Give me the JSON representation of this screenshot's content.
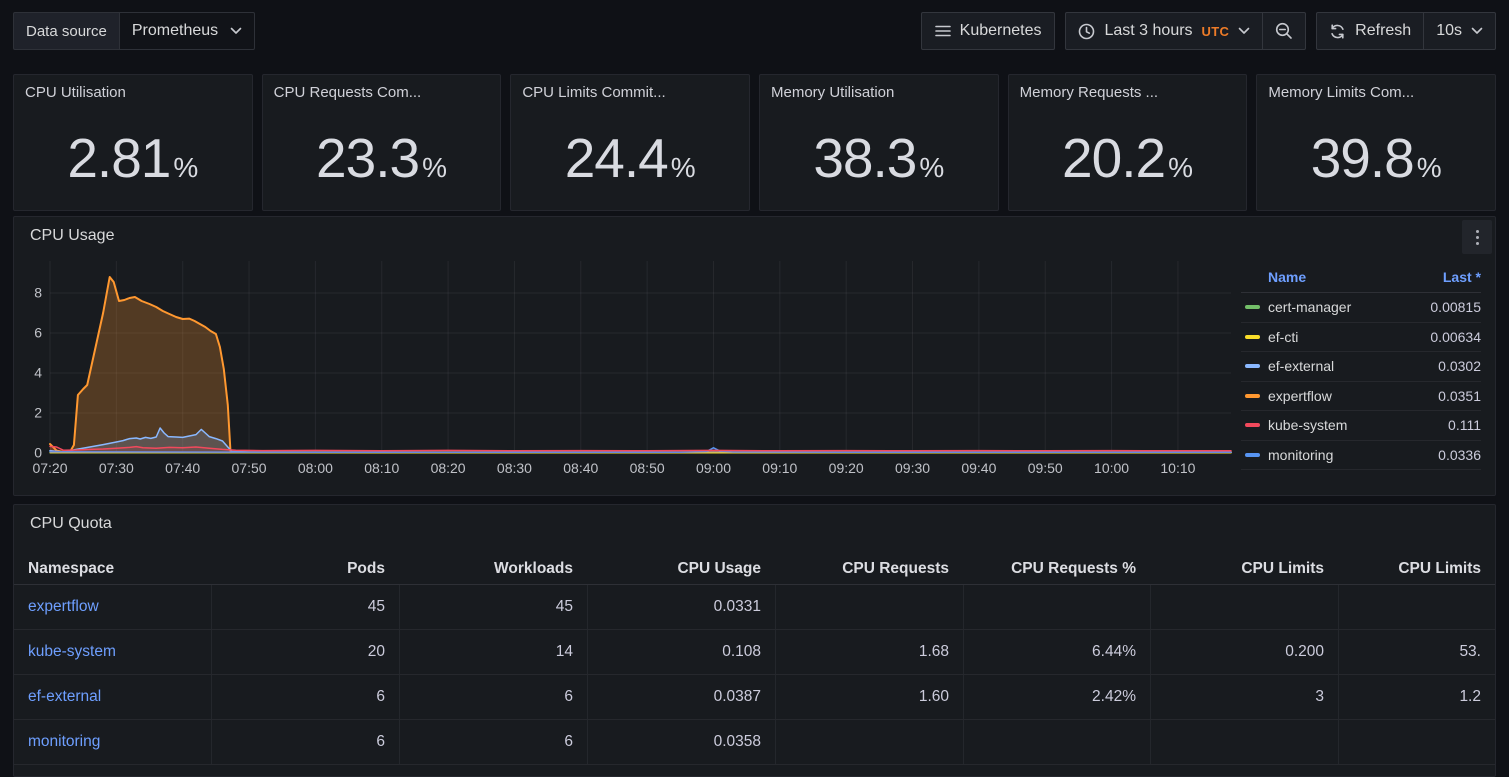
{
  "header": {
    "variable": {
      "label": "Data source",
      "value": "Prometheus"
    },
    "dashboard_button": "Kubernetes",
    "time_range": "Last 3 hours",
    "timezone": "UTC",
    "refresh_label": "Refresh",
    "refresh_interval": "10s"
  },
  "stats": [
    {
      "title": "CPU Utilisation",
      "value": "2.81",
      "unit": "%"
    },
    {
      "title": "CPU Requests Com...",
      "value": "23.3",
      "unit": "%"
    },
    {
      "title": "CPU Limits Commit...",
      "value": "24.4",
      "unit": "%"
    },
    {
      "title": "Memory Utilisation",
      "value": "38.3",
      "unit": "%"
    },
    {
      "title": "Memory Requests ...",
      "value": "20.2",
      "unit": "%"
    },
    {
      "title": "Memory Limits Com...",
      "value": "39.8",
      "unit": "%"
    }
  ],
  "cpu_usage_panel": {
    "title": "CPU Usage",
    "legend": {
      "name_header": "Name",
      "last_header": "Last *",
      "series": [
        {
          "name": "cert-manager",
          "last": "0.00815",
          "color": "#73BF69"
        },
        {
          "name": "ef-cti",
          "last": "0.00634",
          "color": "#FADE2A"
        },
        {
          "name": "ef-external",
          "last": "0.0302",
          "color": "#8AB8FF"
        },
        {
          "name": "expertflow",
          "last": "0.0351",
          "color": "#FF9830"
        },
        {
          "name": "kube-system",
          "last": "0.111",
          "color": "#F2495C"
        },
        {
          "name": "monitoring",
          "last": "0.0336",
          "color": "#5794F2"
        }
      ]
    },
    "chart_data": {
      "type": "area",
      "title": "CPU Usage",
      "x_unit": "minutes after 07:20",
      "xlim": [
        0,
        178
      ],
      "ylim": [
        0,
        9.6
      ],
      "yticks": [
        0,
        2,
        4,
        6,
        8
      ],
      "grid": true,
      "legend_position": "right",
      "xticks": [
        {
          "t": 0,
          "label": "07:20"
        },
        {
          "t": 10,
          "label": "07:30"
        },
        {
          "t": 20,
          "label": "07:40"
        },
        {
          "t": 30,
          "label": "07:50"
        },
        {
          "t": 40,
          "label": "08:00"
        },
        {
          "t": 50,
          "label": "08:10"
        },
        {
          "t": 60,
          "label": "08:20"
        },
        {
          "t": 70,
          "label": "08:30"
        },
        {
          "t": 80,
          "label": "08:40"
        },
        {
          "t": 90,
          "label": "08:50"
        },
        {
          "t": 100,
          "label": "09:00"
        },
        {
          "t": 110,
          "label": "09:10"
        },
        {
          "t": 120,
          "label": "09:20"
        },
        {
          "t": 130,
          "label": "09:30"
        },
        {
          "t": 140,
          "label": "09:40"
        },
        {
          "t": 150,
          "label": "09:50"
        },
        {
          "t": 160,
          "label": "10:00"
        },
        {
          "t": 170,
          "label": "10:10"
        }
      ],
      "series": [
        {
          "name": "expertflow",
          "color": "#FF9830",
          "width": 2,
          "fill_opacity": 0.25,
          "points": [
            [
              0,
              0.45
            ],
            [
              1,
              0.12
            ],
            [
              2,
              0.06
            ],
            [
              3,
              0.05
            ],
            [
              3.6,
              0.4
            ],
            [
              4.2,
              2.9
            ],
            [
              5,
              3.2
            ],
            [
              5.6,
              3.4
            ],
            [
              6.4,
              4.6
            ],
            [
              7.2,
              5.8
            ],
            [
              8,
              7.0
            ],
            [
              9,
              8.8
            ],
            [
              9.6,
              8.55
            ],
            [
              10.4,
              7.6
            ],
            [
              11.2,
              7.65
            ],
            [
              12,
              7.75
            ],
            [
              12.8,
              7.8
            ],
            [
              13.8,
              7.6
            ],
            [
              15,
              7.45
            ],
            [
              16,
              7.3
            ],
            [
              17,
              7.1
            ],
            [
              18,
              6.95
            ],
            [
              19,
              6.8
            ],
            [
              20,
              6.7
            ],
            [
              21,
              6.72
            ],
            [
              21.8,
              6.6
            ],
            [
              22.6,
              6.45
            ],
            [
              23.4,
              6.3
            ],
            [
              24.2,
              6.1
            ],
            [
              25,
              5.95
            ],
            [
              25.6,
              5.3
            ],
            [
              26.2,
              4.2
            ],
            [
              26.8,
              2.4
            ],
            [
              27.2,
              0.06
            ],
            [
              30,
              0.04
            ],
            [
              60,
              0.04
            ],
            [
              100,
              0.035
            ],
            [
              140,
              0.04
            ],
            [
              178,
              0.035
            ]
          ]
        },
        {
          "name": "ef-external",
          "color": "#8AB8FF",
          "width": 1.5,
          "fill_opacity": 0.2,
          "points": [
            [
              0,
              0.12
            ],
            [
              2,
              0.05
            ],
            [
              4,
              0.18
            ],
            [
              6,
              0.3
            ],
            [
              8,
              0.42
            ],
            [
              10,
              0.55
            ],
            [
              11,
              0.62
            ],
            [
              12,
              0.72
            ],
            [
              13,
              0.75
            ],
            [
              13.6,
              0.7
            ],
            [
              14.4,
              0.78
            ],
            [
              15.2,
              0.73
            ],
            [
              16,
              0.8
            ],
            [
              16.6,
              1.25
            ],
            [
              17.2,
              1.0
            ],
            [
              17.8,
              0.82
            ],
            [
              19,
              0.8
            ],
            [
              20,
              0.78
            ],
            [
              21,
              0.85
            ],
            [
              22,
              0.92
            ],
            [
              22.8,
              1.18
            ],
            [
              23.4,
              1.0
            ],
            [
              24,
              0.82
            ],
            [
              25,
              0.72
            ],
            [
              26,
              0.6
            ],
            [
              26.8,
              0.3
            ],
            [
              27.4,
              0.08
            ],
            [
              30,
              0.05
            ],
            [
              60,
              0.03
            ],
            [
              120,
              0.03
            ],
            [
              178,
              0.03
            ]
          ]
        },
        {
          "name": "cert-manager",
          "color": "#73BF69",
          "width": 1.2,
          "fill_opacity": 0,
          "points": [
            [
              0,
              0.012
            ],
            [
              60,
              0.01
            ],
            [
              120,
              0.01
            ],
            [
              178,
              0.008
            ]
          ]
        },
        {
          "name": "ef-cti",
          "color": "#FADE2A",
          "width": 1.2,
          "fill_opacity": 0,
          "points": [
            [
              0,
              0.008
            ],
            [
              90,
              0.007
            ],
            [
              178,
              0.006
            ]
          ]
        },
        {
          "name": "monitoring",
          "color": "#5794F2",
          "width": 1.5,
          "fill_opacity": 0.1,
          "points": [
            [
              0,
              0.06
            ],
            [
              20,
              0.05
            ],
            [
              40,
              0.04
            ],
            [
              60,
              0.04
            ],
            [
              80,
              0.04
            ],
            [
              95,
              0.04
            ],
            [
              99,
              0.08
            ],
            [
              100,
              0.26
            ],
            [
              101,
              0.1
            ],
            [
              103,
              0.05
            ],
            [
              120,
              0.04
            ],
            [
              150,
              0.04
            ],
            [
              178,
              0.034
            ]
          ]
        },
        {
          "name": "kube-system",
          "color": "#F2495C",
          "width": 1.5,
          "fill_opacity": 0.12,
          "points": [
            [
              0,
              0.33
            ],
            [
              1,
              0.3
            ],
            [
              2,
              0.14
            ],
            [
              4,
              0.15
            ],
            [
              6,
              0.18
            ],
            [
              8,
              0.2
            ],
            [
              10,
              0.24
            ],
            [
              12,
              0.28
            ],
            [
              13,
              0.32
            ],
            [
              14,
              0.26
            ],
            [
              16,
              0.24
            ],
            [
              18,
              0.28
            ],
            [
              20,
              0.26
            ],
            [
              22,
              0.3
            ],
            [
              24,
              0.24
            ],
            [
              26,
              0.18
            ],
            [
              28,
              0.14
            ],
            [
              32,
              0.12
            ],
            [
              40,
              0.13
            ],
            [
              50,
              0.11
            ],
            [
              60,
              0.13
            ],
            [
              70,
              0.11
            ],
            [
              80,
              0.12
            ],
            [
              90,
              0.11
            ],
            [
              100,
              0.13
            ],
            [
              110,
              0.11
            ],
            [
              120,
              0.12
            ],
            [
              130,
              0.11
            ],
            [
              140,
              0.12
            ],
            [
              150,
              0.11
            ],
            [
              160,
              0.12
            ],
            [
              170,
              0.11
            ],
            [
              178,
              0.111
            ]
          ]
        }
      ]
    }
  },
  "cpu_quota_panel": {
    "title": "CPU Quota",
    "columns": [
      "Namespace",
      "Pods",
      "Workloads",
      "CPU Usage",
      "CPU Requests",
      "CPU Requests %",
      "CPU Limits",
      "CPU Limits"
    ],
    "rows": [
      {
        "namespace": "expertflow",
        "cells": [
          "45",
          "45",
          "0.0331",
          "",
          "",
          "",
          ""
        ]
      },
      {
        "namespace": "kube-system",
        "cells": [
          "20",
          "14",
          "0.108",
          "1.68",
          "6.44%",
          "0.200",
          "53."
        ]
      },
      {
        "namespace": "ef-external",
        "cells": [
          "6",
          "6",
          "0.0387",
          "1.60",
          "2.42%",
          "3",
          "1.2"
        ]
      },
      {
        "namespace": "monitoring",
        "cells": [
          "6",
          "6",
          "0.0358",
          "",
          "",
          "",
          ""
        ]
      }
    ]
  }
}
